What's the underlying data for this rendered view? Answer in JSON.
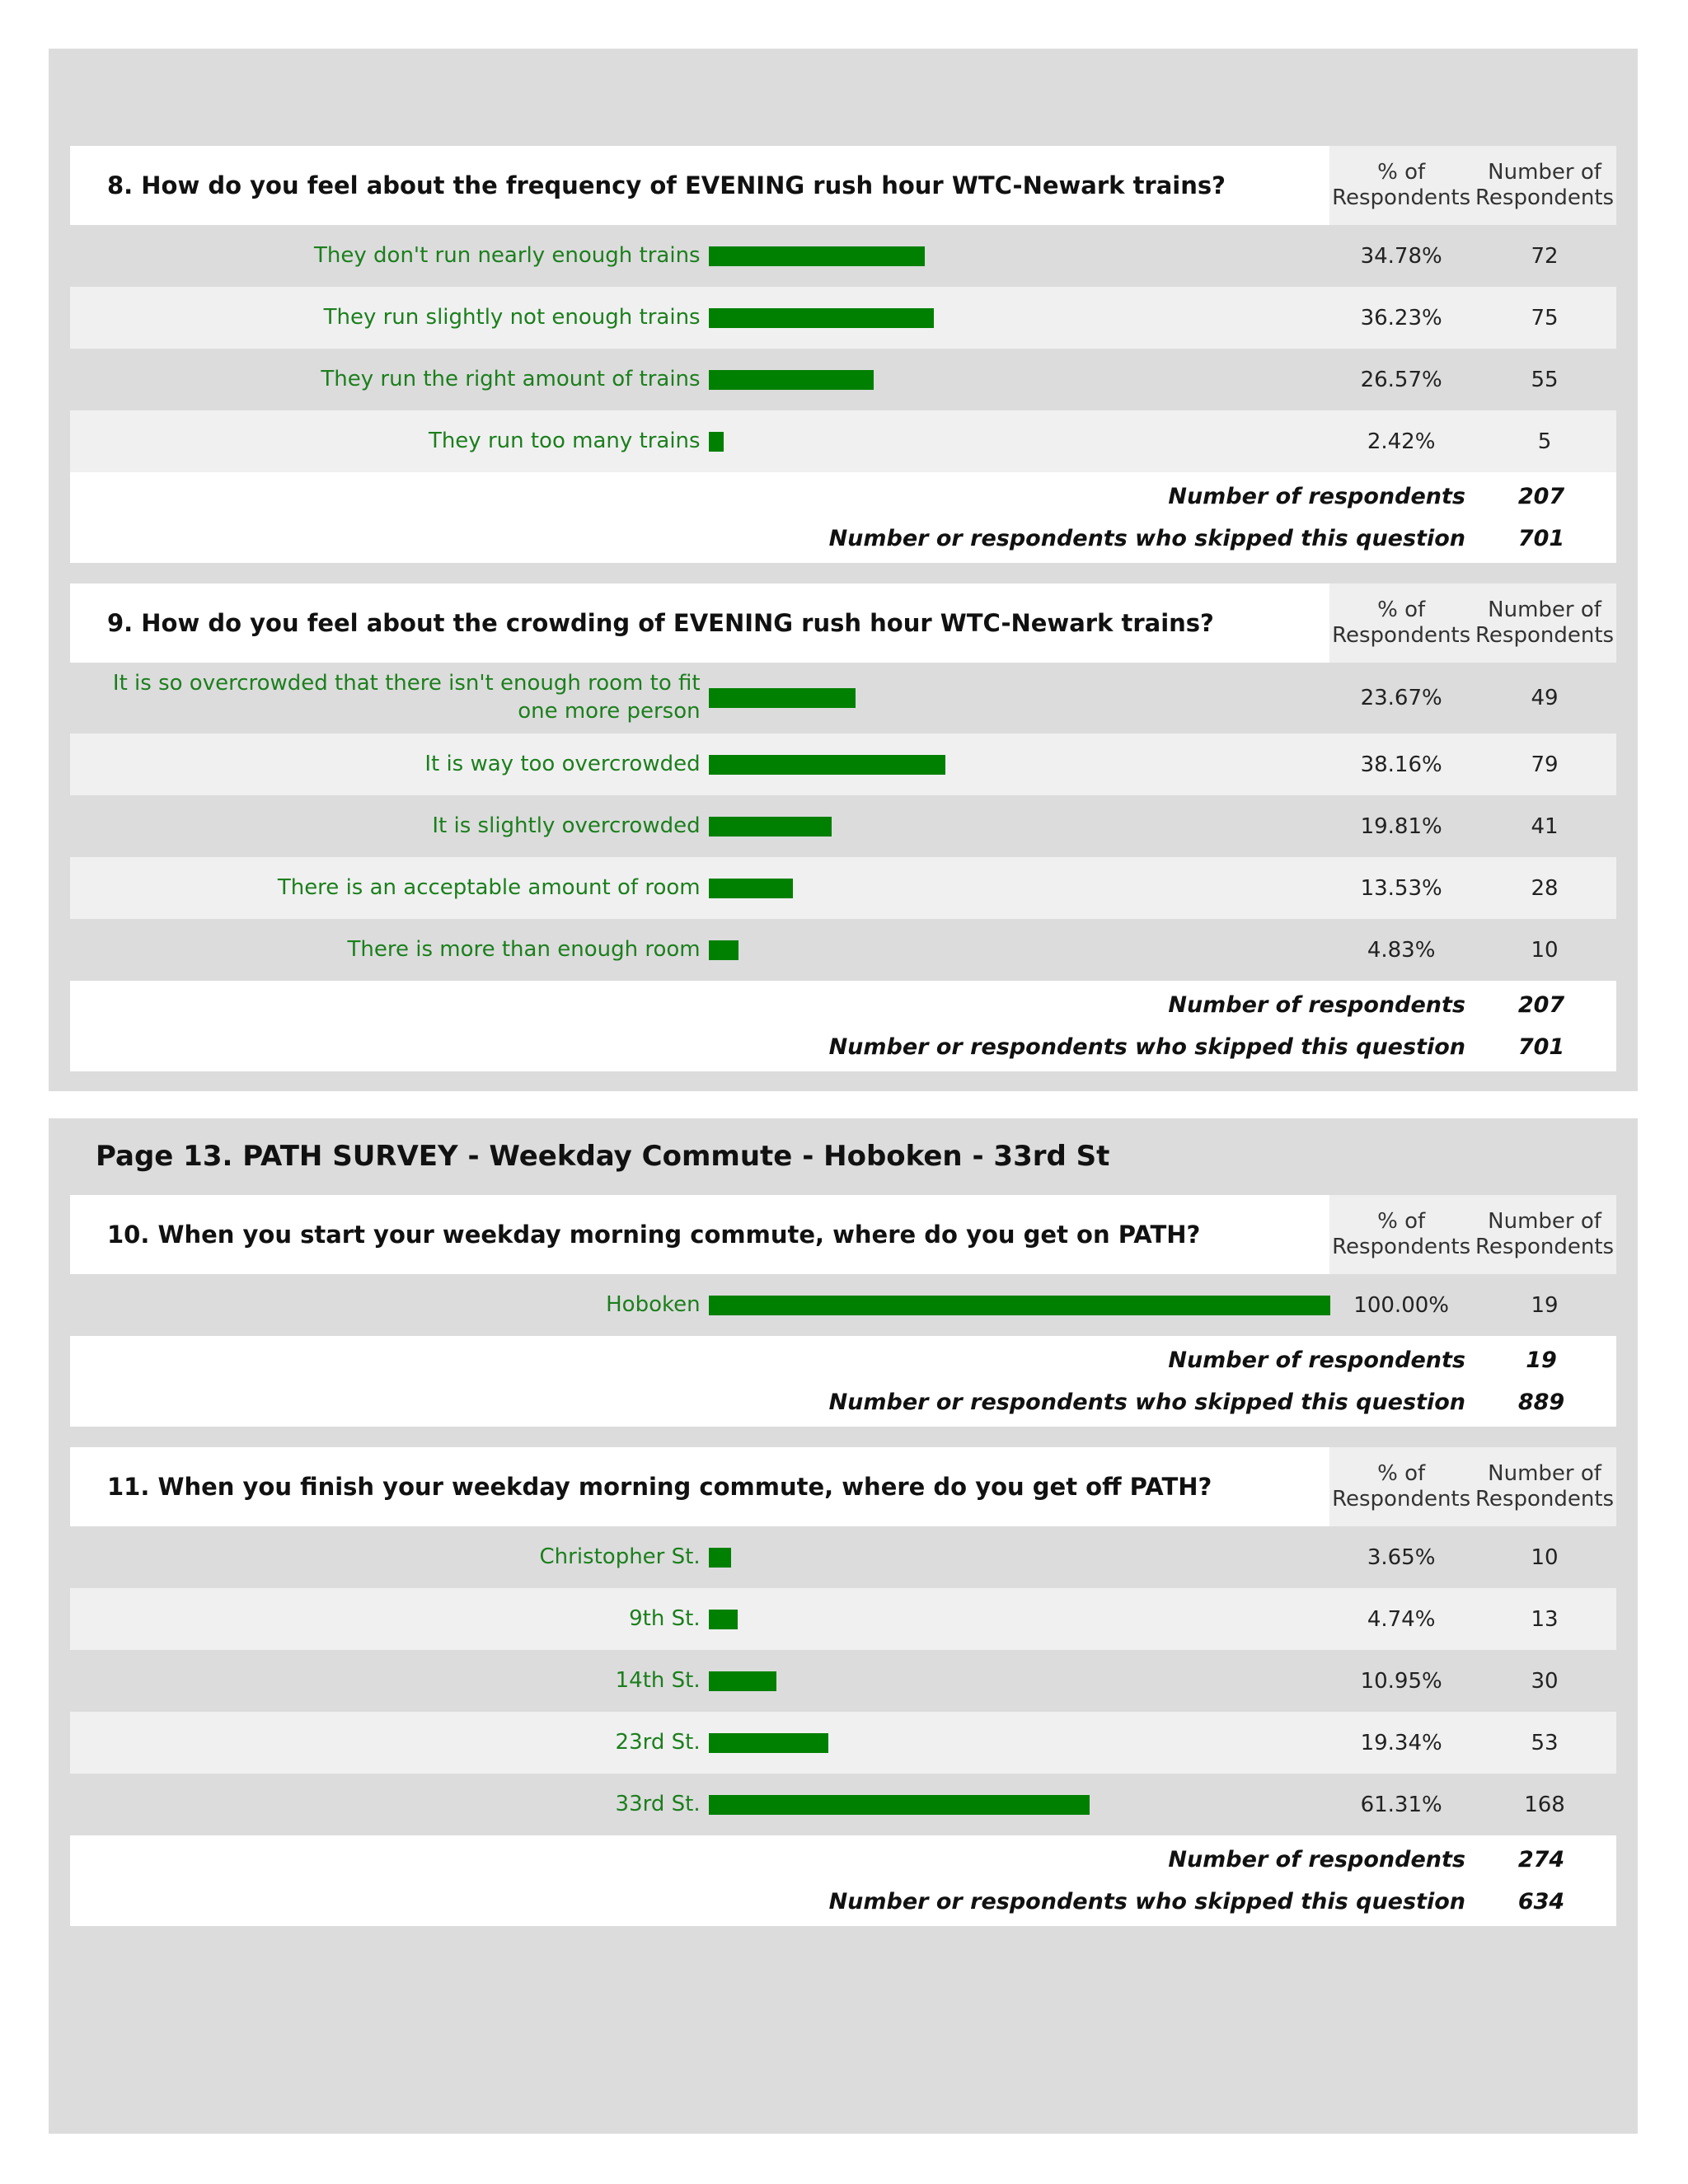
{
  "sections": [
    {
      "questions": [
        {
          "question": "8. How do you feel about the frequency of EVENING rush hour WTC-Newark trains?",
          "header": [
            "% of Respondents",
            "Number of Respondents"
          ],
          "answers": [
            {
              "label": "They don't run nearly enough trains",
              "percent": "34.78%",
              "count": 72
            },
            {
              "label": "They run slightly not enough trains",
              "percent": "36.23%",
              "count": 75
            },
            {
              "label": "They run the right amount of trains",
              "percent": "26.57%",
              "count": 55
            },
            {
              "label": "They run too many trains",
              "percent": "2.42%",
              "count": 5
            }
          ],
          "footer": [
            {
              "label": "Number of respondents",
              "value": 207
            },
            {
              "label": "Number or respondents who skipped this question",
              "value": 701
            }
          ]
        },
        {
          "question": "9. How do you feel about the crowding of EVENING rush hour WTC-Newark trains?",
          "header": [
            "% of Respondents",
            "Number of Respondents"
          ],
          "answers": [
            {
              "label": "It is so overcrowded that there isn't enough room to fit one more person",
              "percent": "23.67%",
              "count": 49
            },
            {
              "label": "It is way too overcrowded",
              "percent": "38.16%",
              "count": 79
            },
            {
              "label": "It is slightly overcrowded",
              "percent": "19.81%",
              "count": 41
            },
            {
              "label": "There is an acceptable amount of room",
              "percent": "13.53%",
              "count": 28
            },
            {
              "label": "There is more than enough room",
              "percent": "4.83%",
              "count": 10
            }
          ],
          "footer": [
            {
              "label": "Number of respondents",
              "value": 207
            },
            {
              "label": "Number or respondents who skipped this question",
              "value": 701
            }
          ]
        }
      ]
    },
    {
      "title": "Page 13. PATH SURVEY - Weekday Commute - Hoboken - 33rd St",
      "questions": [
        {
          "question": "10. When you start your weekday morning commute, where do you get on PATH?",
          "header": [
            "% of Respondents",
            "Number of Respondents"
          ],
          "answers": [
            {
              "label": "Hoboken",
              "percent": "100.00%",
              "count": 19
            }
          ],
          "footer": [
            {
              "label": "Number of respondents",
              "value": 19
            },
            {
              "label": "Number or respondents who skipped this question",
              "value": 889
            }
          ]
        },
        {
          "question": "11. When you finish your weekday morning commute, where do you get off PATH?",
          "header": [
            "% of Respondents",
            "Number of Respondents"
          ],
          "answers": [
            {
              "label": "Christopher St.",
              "percent": "3.65%",
              "count": 10
            },
            {
              "label": "9th St.",
              "percent": "4.74%",
              "count": 13
            },
            {
              "label": "14th St.",
              "percent": "10.95%",
              "count": 30
            },
            {
              "label": "23rd St.",
              "percent": "19.34%",
              "count": 53
            },
            {
              "label": "33rd St.",
              "percent": "61.31%",
              "count": 168
            }
          ],
          "footer": [
            {
              "label": "Number of respondents",
              "value": 274
            },
            {
              "label": "Number or respondents who skipped this question",
              "value": 634
            }
          ]
        }
      ]
    }
  ]
}
